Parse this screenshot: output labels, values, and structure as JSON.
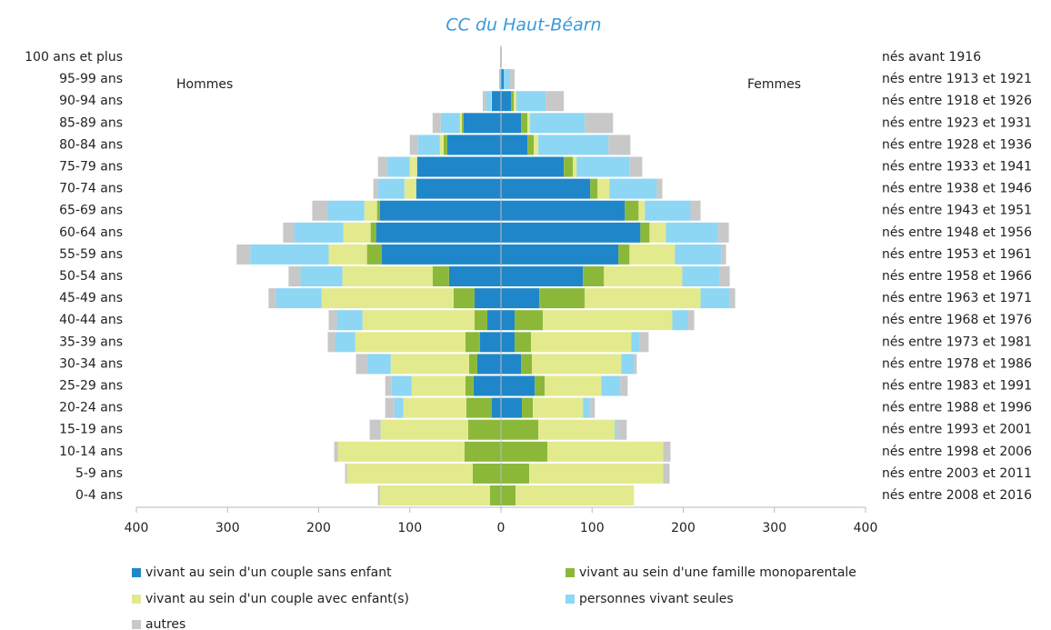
{
  "chart_data": {
    "type": "pyramid",
    "title": "CC du Haut-Béarn",
    "categories": [
      "100 ans et plus",
      "95-99 ans",
      "90-94 ans",
      "85-89 ans",
      "80-84 ans",
      "75-79 ans",
      "70-74 ans",
      "65-69 ans",
      "60-64 ans",
      "55-59 ans",
      "50-54 ans",
      "45-49 ans",
      "40-44 ans",
      "35-39 ans",
      "30-34 ans",
      "25-29 ans",
      "20-24 ans",
      "15-19 ans",
      "10-14 ans",
      "5-9 ans",
      "0-4 ans"
    ],
    "birth_labels": [
      "nés avant 1916",
      "nés entre 1913 et 1921",
      "nés entre 1918 et 1926",
      "nés entre 1923 et 1931",
      "nés entre 1928 et 1936",
      "nés entre 1933 et 1941",
      "nés entre 1938 et 1946",
      "nés entre 1943 et 1951",
      "nés entre 1948 et 1956",
      "nés entre 1953 et 1961",
      "nés entre 1958 et 1966",
      "nés entre 1963 et 1971",
      "nés entre 1968 et 1976",
      "nés entre 1973 et 1981",
      "nés entre 1978 et 1986",
      "nés entre 1983 et 1991",
      "nés entre 1988 et 1996",
      "nés entre 1993 et 2001",
      "nés entre 1998 et 2006",
      "nés entre 2003 et 2011",
      "nés entre 2008 et 2016"
    ],
    "legend": [
      {
        "name": "vivant au sein d'un couple sans enfant",
        "color": "#1f87c9"
      },
      {
        "name": "vivant au sein d'une famille monoparentale",
        "color": "#8cb83a"
      },
      {
        "name": "vivant au sein d'un couple avec enfant(s)",
        "color": "#e3ea8e"
      },
      {
        "name": "personnes vivant seules",
        "color": "#8dd6f4"
      },
      {
        "name": "autres",
        "color": "#c8c8c8"
      }
    ],
    "sides": [
      {
        "label": "Hommes",
        "series": [
          {
            "values": [
              0,
              0,
              10,
              41,
              59,
              92,
              93,
              133,
              137,
              131,
              57,
              29,
              15,
              23,
              26,
              30,
              10,
              0,
              0,
              0,
              0
            ]
          },
          {
            "values": [
              0,
              0,
              0,
              2,
              4,
              0,
              0,
              3,
              6,
              16,
              18,
              23,
              14,
              16,
              9,
              9,
              28,
              36,
              40,
              31,
              12
            ]
          },
          {
            "values": [
              0,
              0,
              1,
              2,
              4,
              8,
              13,
              14,
              30,
              42,
              99,
              145,
              123,
              121,
              86,
              59,
              69,
              96,
              139,
              138,
              121
            ]
          },
          {
            "values": [
              0,
              2,
              5,
              21,
              24,
              25,
              29,
              40,
              54,
              86,
              46,
              50,
              28,
              22,
              26,
              22,
              10,
              0,
              0,
              0,
              0
            ]
          },
          {
            "values": [
              1,
              0,
              4,
              9,
              9,
              10,
              5,
              17,
              12,
              15,
              13,
              8,
              9,
              8,
              12,
              7,
              10,
              12,
              4,
              2,
              2
            ]
          }
        ]
      },
      {
        "label": "Femmes",
        "series": [
          {
            "values": [
              0,
              3,
              11,
              22,
              29,
              69,
              98,
              136,
              153,
              129,
              90,
              42,
              15,
              15,
              22,
              37,
              23,
              0,
              0,
              0,
              0
            ]
          },
          {
            "values": [
              0,
              0,
              3,
              7,
              7,
              10,
              8,
              15,
              10,
              12,
              23,
              50,
              31,
              18,
              12,
              11,
              12,
              41,
              51,
              31,
              16
            ]
          },
          {
            "values": [
              0,
              0,
              3,
              3,
              5,
              4,
              13,
              7,
              18,
              50,
              86,
              127,
              142,
              110,
              98,
              62,
              55,
              84,
              127,
              147,
              130
            ]
          },
          {
            "values": [
              0,
              7,
              32,
              60,
              77,
              58,
              52,
              50,
              57,
              51,
              41,
              32,
              17,
              9,
              14,
              21,
              8,
              2,
              0,
              0,
              0
            ]
          },
          {
            "values": [
              1,
              5,
              20,
              31,
              24,
              14,
              6,
              11,
              12,
              5,
              11,
              6,
              7,
              10,
              3,
              8,
              5,
              11,
              8,
              7,
              0
            ]
          }
        ]
      }
    ],
    "xlim": [
      -400,
      400
    ],
    "xticks": [
      {
        "value": -400,
        "label": "400"
      },
      {
        "value": -300,
        "label": "300"
      },
      {
        "value": -200,
        "label": "200"
      },
      {
        "value": -100,
        "label": "100"
      },
      0,
      100,
      200,
      300,
      400
    ]
  }
}
